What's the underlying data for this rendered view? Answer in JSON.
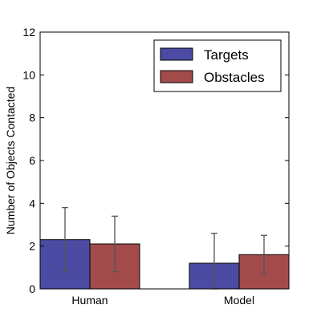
{
  "chart_data": {
    "type": "bar",
    "title": "",
    "xlabel": "",
    "ylabel": "Number of Objects Contacted",
    "categories": [
      "Human",
      "Model"
    ],
    "ylim": [
      0,
      12
    ],
    "yticks": [
      0,
      2,
      4,
      6,
      8,
      10,
      12
    ],
    "grid": false,
    "legend_position": "top-right",
    "series": [
      {
        "name": "Targets",
        "values": [
          2.3,
          1.2
        ],
        "errors": [
          1.5,
          1.4
        ],
        "color": "#4b4ba3"
      },
      {
        "name": "Obstacles",
        "values": [
          2.1,
          1.6
        ],
        "errors": [
          1.3,
          0.9
        ],
        "color": "#a34b4b"
      }
    ],
    "error_bar_color": "#555555"
  }
}
